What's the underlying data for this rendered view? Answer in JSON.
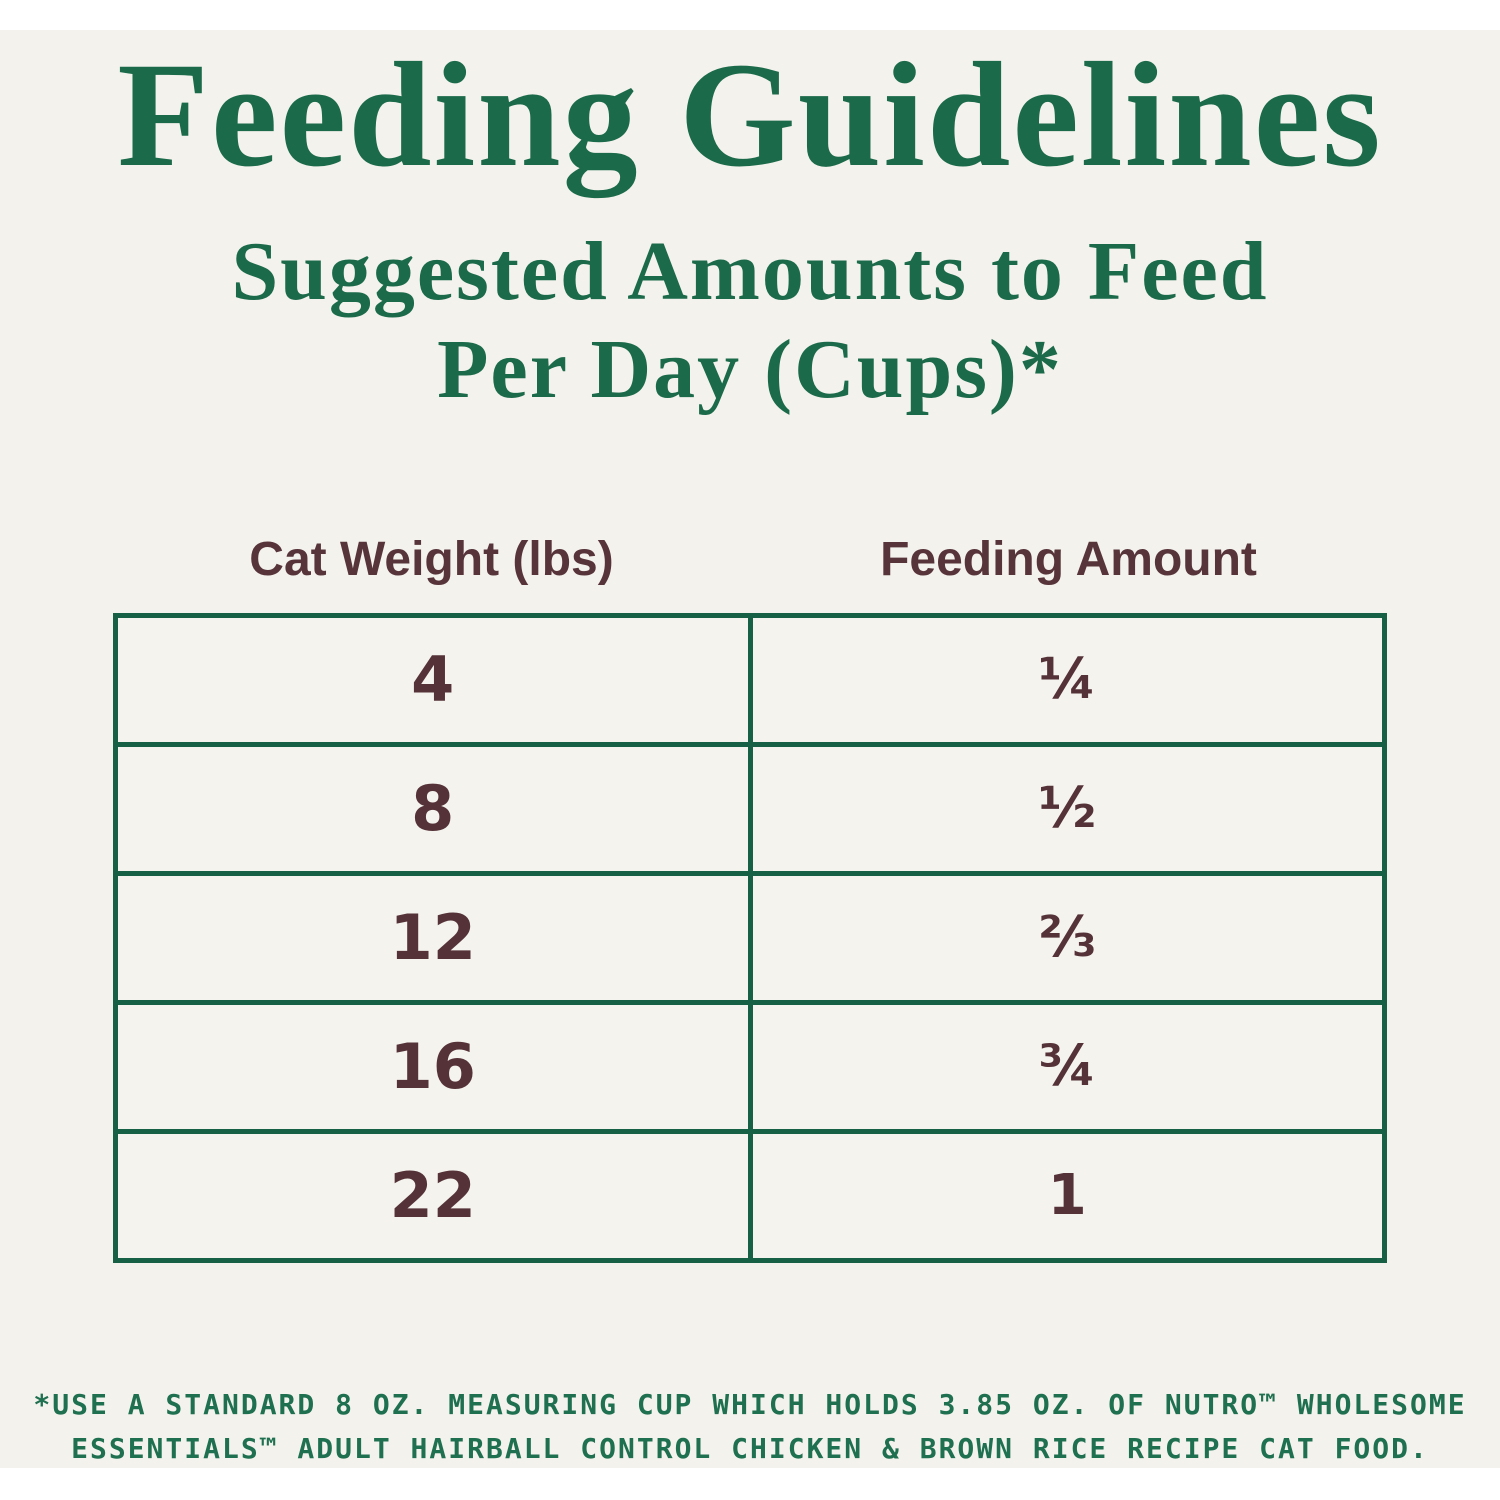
{
  "colors": {
    "title_green": "#1b6a4a",
    "border_green": "#166045",
    "footnote_green": "#1e7050",
    "maroon_text": "#553238",
    "panel_background": "#f3f2ec",
    "page_background": "#ffffff"
  },
  "header": {
    "title": "Feeding Guidelines",
    "subtitle_lines": [
      "Suggested Amounts to Feed",
      "Per Day (Cups)*"
    ]
  },
  "table": {
    "columns": [
      "Cat Weight (lbs)",
      "Feeding Amount"
    ],
    "rows": [
      {
        "weight": "4",
        "amount": "¼"
      },
      {
        "weight": "8",
        "amount": "½"
      },
      {
        "weight": "12",
        "amount": "⅔"
      },
      {
        "weight": "16",
        "amount": "¾"
      },
      {
        "weight": "22",
        "amount": "1"
      }
    ]
  },
  "footnote": {
    "lines": [
      "*USE A STANDARD 8 OZ. MEASURING CUP WHICH HOLDS 3.85 OZ. OF NUTRO™ WHOLESOME",
      "ESSENTIALS™ ADULT HAIRBALL CONTROL CHICKEN & BROWN RICE RECIPE CAT FOOD."
    ]
  }
}
